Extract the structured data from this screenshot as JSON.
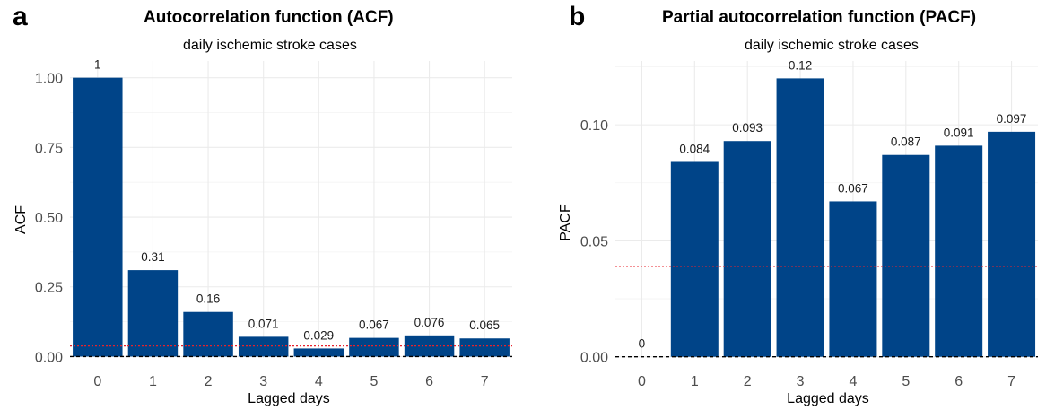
{
  "chart_data": [
    {
      "panel_letter": "a",
      "type": "bar",
      "title": "Autocorrelation function (ACF)",
      "subtitle": "daily ischemic stroke cases",
      "xlabel": "Lagged days",
      "ylabel": "ACF",
      "categories": [
        "0",
        "1",
        "2",
        "3",
        "4",
        "5",
        "6",
        "7"
      ],
      "values": [
        1,
        0.31,
        0.16,
        0.071,
        0.029,
        0.067,
        0.076,
        0.065
      ],
      "data_labels": [
        "1",
        "0.31",
        "0.16",
        "0.071",
        "0.029",
        "0.067",
        "0.076",
        "0.065"
      ],
      "yticks": [
        0,
        0.25,
        0.5,
        0.75,
        1.0
      ],
      "ytick_labels": [
        "0.00",
        "0.25",
        "0.50",
        "0.75",
        "1.00"
      ],
      "ylim": [
        -0.005,
        1.06
      ],
      "significance_line": 0.038,
      "zero_line": true,
      "bar_color": "#004488",
      "grid": true
    },
    {
      "panel_letter": "b",
      "type": "bar",
      "title": "Partial autocorrelation function (PACF)",
      "subtitle": "daily ischemic stroke cases",
      "xlabel": "Lagged days",
      "ylabel": "PACF",
      "categories": [
        "0",
        "1",
        "2",
        "3",
        "4",
        "5",
        "6",
        "7"
      ],
      "values": [
        0,
        0.084,
        0.093,
        0.12,
        0.067,
        0.087,
        0.091,
        0.097
      ],
      "data_labels": [
        "0",
        "0.084",
        "0.093",
        "0.12",
        "0.067",
        "0.087",
        "0.091",
        "0.097"
      ],
      "yticks": [
        0,
        0.05,
        0.1
      ],
      "ytick_labels": [
        "0.00",
        "0.05",
        "0.10"
      ],
      "ylim": [
        -0.0005,
        0.1275
      ],
      "significance_line": 0.039,
      "zero_line": true,
      "bar_color": "#004488",
      "grid": true
    }
  ]
}
